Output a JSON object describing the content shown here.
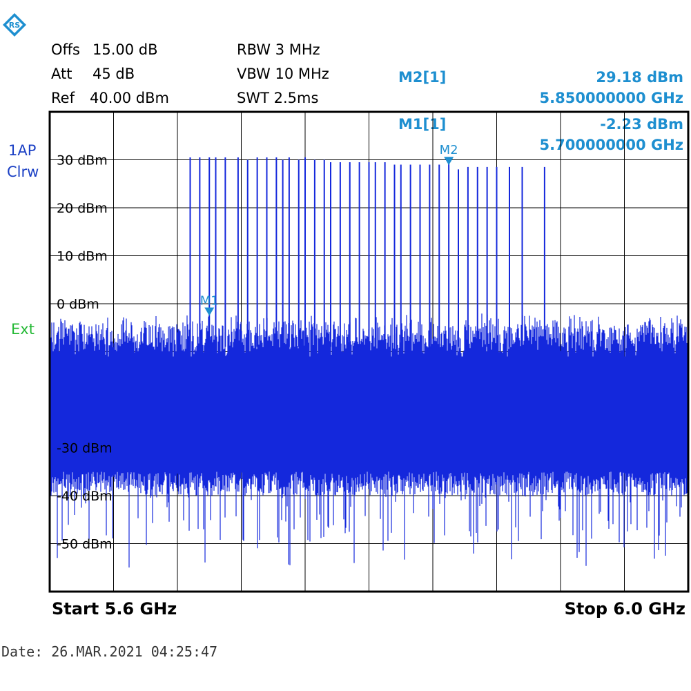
{
  "settings": {
    "offs_label": "Offs",
    "offs_value": "15.00 dB",
    "att_label": "Att",
    "att_value": "45 dB",
    "ref_label": "Ref",
    "ref_value": "40.00 dBm",
    "rbw": "RBW 3 MHz",
    "vbw": "VBW 10 MHz",
    "swt": "SWT 2.5ms"
  },
  "markers": {
    "m2_label": "M2[1]",
    "m2_level": "29.18 dBm",
    "m2_freq": "5.850000000 GHz",
    "m1_label": "M1[1]",
    "m1_level": "-2.23 dBm",
    "m1_freq": "5.700000000 GHz",
    "m1_tag": "M1",
    "m2_tag": "M2"
  },
  "trace_info": {
    "line1": "1AP",
    "line2": "Clrw",
    "ext": "Ext"
  },
  "footer": {
    "start": "Start 5.6 GHz",
    "stop": "Stop 6.0 GHz",
    "date": "Date: 26.MAR.2021  04:25:47"
  },
  "colors": {
    "trace": "#1428dc",
    "marker": "#1e8fd0",
    "grid": "#000000",
    "ext": "#22b833"
  },
  "chart_data": {
    "type": "line",
    "title": "",
    "xlabel": "",
    "ylabel": "",
    "xlim": [
      5.6,
      6.0
    ],
    "ylim": [
      -60,
      40
    ],
    "x_unit": "GHz",
    "y_unit": "dBm",
    "grid": true,
    "ytick_labels": [
      {
        "value": 30,
        "label": "30 dBm"
      },
      {
        "value": 20,
        "label": "20 dBm"
      },
      {
        "value": 10,
        "label": "10 dBm"
      },
      {
        "value": 0,
        "label": "0 dBm"
      },
      {
        "value": -30,
        "label": "-30 dBm"
      },
      {
        "value": -40,
        "label": "-40 dBm"
      },
      {
        "value": -50,
        "label": "-50 dBm"
      }
    ],
    "noise_floor": {
      "upper_dBm": -5,
      "lower_dBm": -35,
      "dip_min_dBm": -55
    },
    "spikes": [
      {
        "f": 5.688,
        "level": 30.5
      },
      {
        "f": 5.694,
        "level": 30.5
      },
      {
        "f": 5.7,
        "level": 30.5
      },
      {
        "f": 5.704,
        "level": 30.5
      },
      {
        "f": 5.71,
        "level": 30.5
      },
      {
        "f": 5.718,
        "level": 30.5
      },
      {
        "f": 5.724,
        "level": 30.0
      },
      {
        "f": 5.73,
        "level": 30.5
      },
      {
        "f": 5.736,
        "level": 30.5
      },
      {
        "f": 5.742,
        "level": 30.5
      },
      {
        "f": 5.746,
        "level": 30.0
      },
      {
        "f": 5.75,
        "level": 30.5
      },
      {
        "f": 5.756,
        "level": 30.0
      },
      {
        "f": 5.76,
        "level": 30.5
      },
      {
        "f": 5.766,
        "level": 30.0
      },
      {
        "f": 5.772,
        "level": 30.0
      },
      {
        "f": 5.776,
        "level": 29.5
      },
      {
        "f": 5.782,
        "level": 29.5
      },
      {
        "f": 5.788,
        "level": 29.5
      },
      {
        "f": 5.794,
        "level": 29.5
      },
      {
        "f": 5.8,
        "level": 29.5
      },
      {
        "f": 5.804,
        "level": 29.5
      },
      {
        "f": 5.81,
        "level": 29.5
      },
      {
        "f": 5.816,
        "level": 29.0
      },
      {
        "f": 5.82,
        "level": 29.0
      },
      {
        "f": 5.826,
        "level": 29.0
      },
      {
        "f": 5.832,
        "level": 29.0
      },
      {
        "f": 5.838,
        "level": 29.0
      },
      {
        "f": 5.844,
        "level": 29.0
      },
      {
        "f": 5.85,
        "level": 29.2
      },
      {
        "f": 5.856,
        "level": 28.0
      },
      {
        "f": 5.862,
        "level": 28.5
      },
      {
        "f": 5.868,
        "level": 28.5
      },
      {
        "f": 5.874,
        "level": 28.5
      },
      {
        "f": 5.88,
        "level": 28.5
      },
      {
        "f": 5.888,
        "level": 28.5
      },
      {
        "f": 5.896,
        "level": 28.5
      },
      {
        "f": 5.91,
        "level": 28.5
      }
    ],
    "marker_points": [
      {
        "name": "M1",
        "f": 5.7,
        "level": -2.23
      },
      {
        "name": "M2",
        "f": 5.85,
        "level": 29.18
      }
    ]
  }
}
